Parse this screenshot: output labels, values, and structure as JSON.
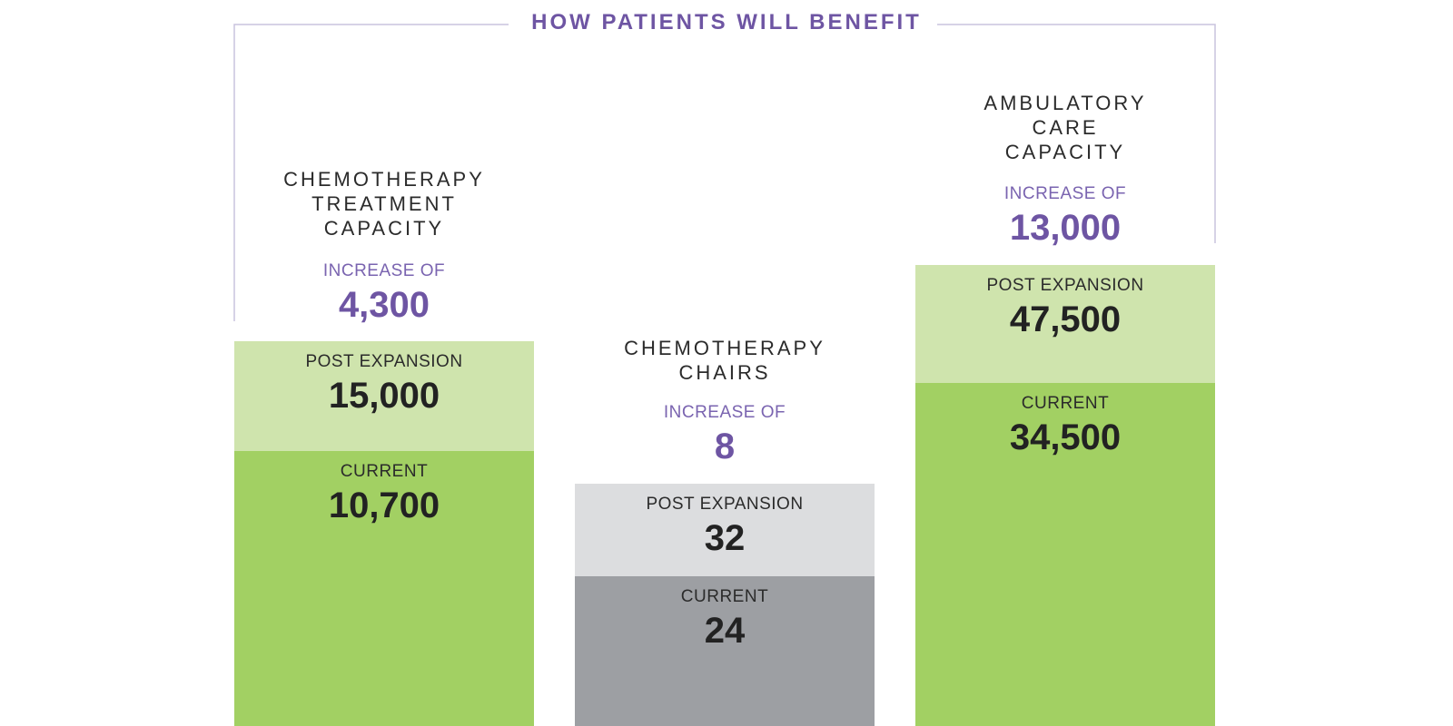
{
  "title": "HOW PATIENTS WILL BENEFIT",
  "colors": {
    "accent_purple": "#6e55a3",
    "frame_line": "#c9c3de",
    "green_current": "#a2d063",
    "green_post": "#cfe4ad",
    "gray_current": "#9d9fa3",
    "gray_post": "#dcdddf"
  },
  "chart_data": [
    {
      "type": "bar",
      "title": "CHEMOTHERAPY TREATMENT CAPACITY",
      "increase_label": "INCREASE OF",
      "increase_value": "4,300",
      "segments": [
        {
          "name": "CURRENT",
          "value": 10700,
          "display": "10,700"
        },
        {
          "name": "POST EXPANSION",
          "value": 15000,
          "display": "15,000"
        }
      ]
    },
    {
      "type": "bar",
      "title": "CHEMOTHERAPY CHAIRS",
      "increase_label": "INCREASE OF",
      "increase_value": "8",
      "segments": [
        {
          "name": "CURRENT",
          "value": 24,
          "display": "24"
        },
        {
          "name": "POST EXPANSION",
          "value": 32,
          "display": "32"
        }
      ]
    },
    {
      "type": "bar",
      "title": "AMBULATORY CARE CAPACITY",
      "increase_label": "INCREASE OF",
      "increase_value": "13,000",
      "segments": [
        {
          "name": "CURRENT",
          "value": 34500,
          "display": "34,500"
        },
        {
          "name": "POST EXPANSION",
          "value": 47500,
          "display": "47,500"
        }
      ]
    }
  ]
}
